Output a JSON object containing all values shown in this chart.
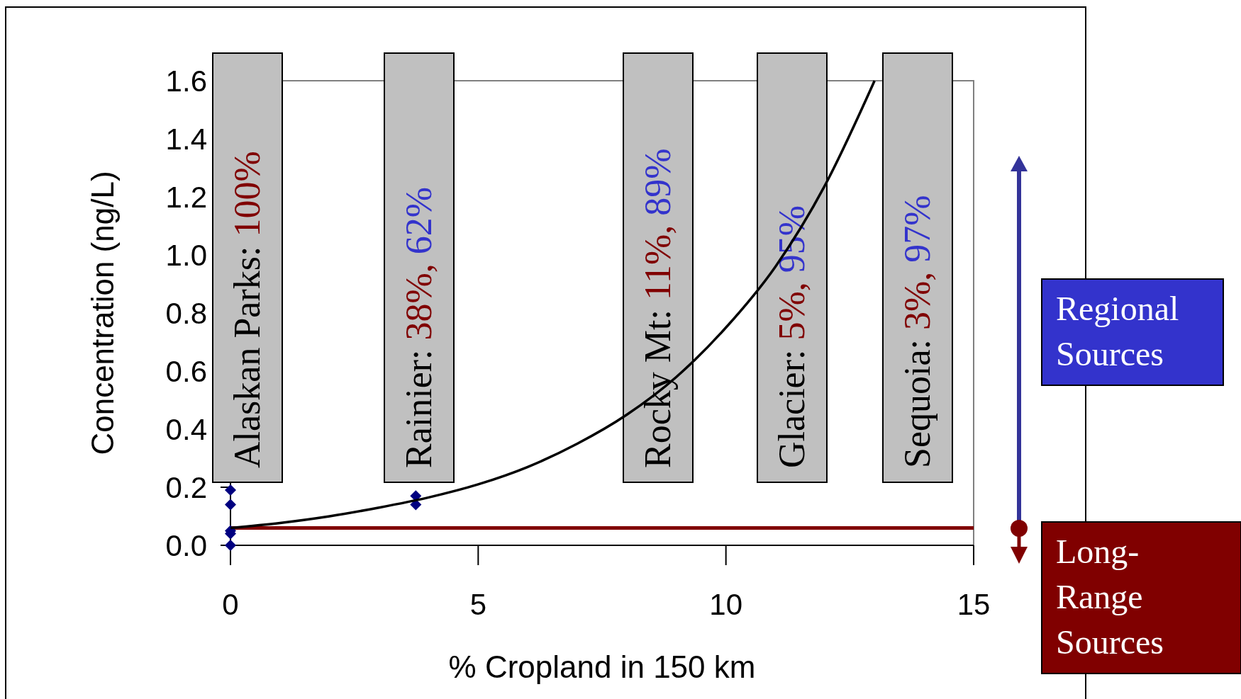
{
  "chart_data": {
    "type": "scatter",
    "xlabel": "% Cropland in 150 km",
    "ylabel": "Concentration (ng/L)",
    "xlim": [
      0,
      15
    ],
    "xticks": [
      0,
      5,
      10,
      15
    ],
    "ylim": [
      0,
      1.6
    ],
    "yticks": [
      {
        "value": 0,
        "label": "0.0"
      },
      {
        "value": 0.2,
        "label": "0.2"
      },
      {
        "value": 0.4,
        "label": "0.4"
      },
      {
        "value": 0.6,
        "label": "0.6"
      },
      {
        "value": 0.8,
        "label": "0.8"
      },
      {
        "value": 1,
        "label": "1.0"
      },
      {
        "value": 1.2,
        "label": "1.2"
      },
      {
        "value": 1.4,
        "label": "1.4"
      },
      {
        "value": 1.6,
        "label": "1.6"
      }
    ],
    "marker": "diamond",
    "grid": false,
    "series": [
      {
        "color": "#000080",
        "x": [
          0,
          0,
          0,
          0,
          0,
          3.74,
          3.74
        ],
        "values": [
          0.19,
          0.14,
          0.05,
          0.04,
          0.0,
          0.17,
          0.14
        ]
      },
      {
        "type": "line",
        "color": "#000000",
        "marker": "none",
        "x": [
          0,
          1,
          2,
          3,
          4,
          5,
          6,
          7,
          8,
          9,
          10,
          11,
          12,
          13
        ],
        "values": [
          0.06,
          0.077,
          0.1,
          0.13,
          0.165,
          0.21,
          0.27,
          0.35,
          0.45,
          0.58,
          0.75,
          0.96,
          1.24,
          1.6
        ]
      }
    ],
    "ref_lines": [
      {
        "axis": "y",
        "value": 0.06,
        "color": "#800000"
      }
    ],
    "annotations": [
      "Alaskan Parks: 100%",
      "Rainier: 38%, 62%",
      "Rocky Mt: 11%, 89%",
      "Glacier: 5%, 95%",
      "Sequoia: 3%, 97%",
      "Regional Sources",
      "Long-Range Sources"
    ]
  }
}
